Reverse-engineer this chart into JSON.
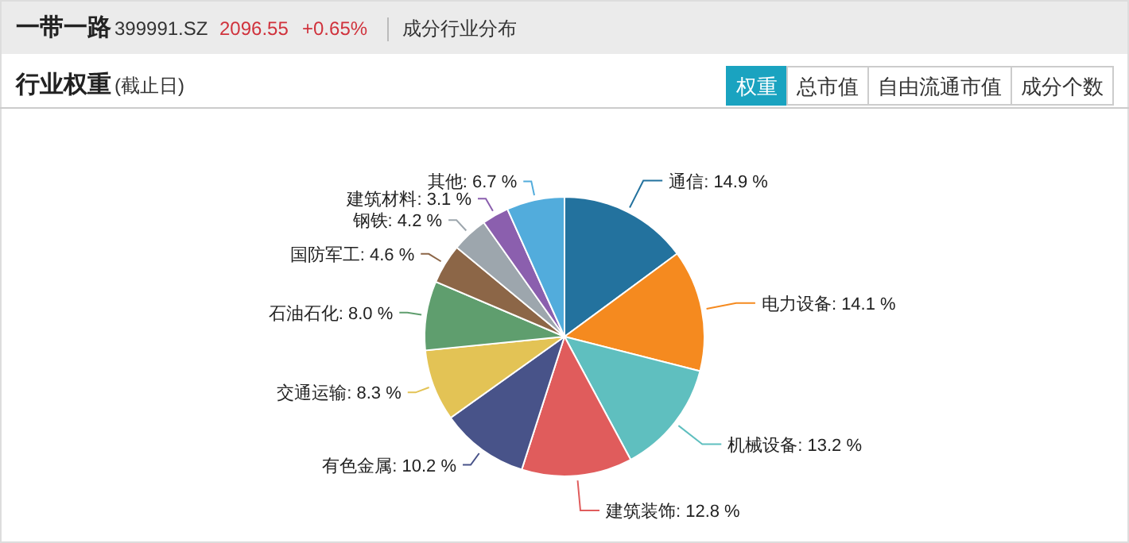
{
  "chart_data": {
    "type": "pie",
    "title": "行业权重",
    "subtitle": "(截止日)",
    "annotations": [
      "一带一路",
      "399991.SZ",
      "2096.55",
      "+0.65%",
      "成分行业分布",
      "权重",
      "总市值",
      "自由流通市值",
      "成分个数"
    ],
    "categories": [
      "通信",
      "电力设备",
      "机械设备",
      "建筑装饰",
      "有色金属",
      "交通运输",
      "石油石化",
      "国防军工",
      "钢铁",
      "建筑材料",
      "其他"
    ],
    "values": [
      14.9,
      14.1,
      13.2,
      12.8,
      10.2,
      8.3,
      8.0,
      4.6,
      4.2,
      3.1,
      6.7
    ],
    "value_labels": [
      ": 14.9 %",
      ": 14.1 %",
      ": 13.2 %",
      ": 12.8 %",
      ": 10.2 %",
      ": 8.3 %",
      ": 8.0 %",
      ": 4.6 %",
      ": 4.2 %",
      ": 3.1 %",
      ": 6.7 %"
    ],
    "colors": [
      "#23729e",
      "#f58a1f",
      "#5fbfbf",
      "#e05c5c",
      "#485389",
      "#e3c355",
      "#5f9e6e",
      "#8c6647",
      "#9da6ad",
      "#8b5fae",
      "#52acdc"
    ]
  }
}
